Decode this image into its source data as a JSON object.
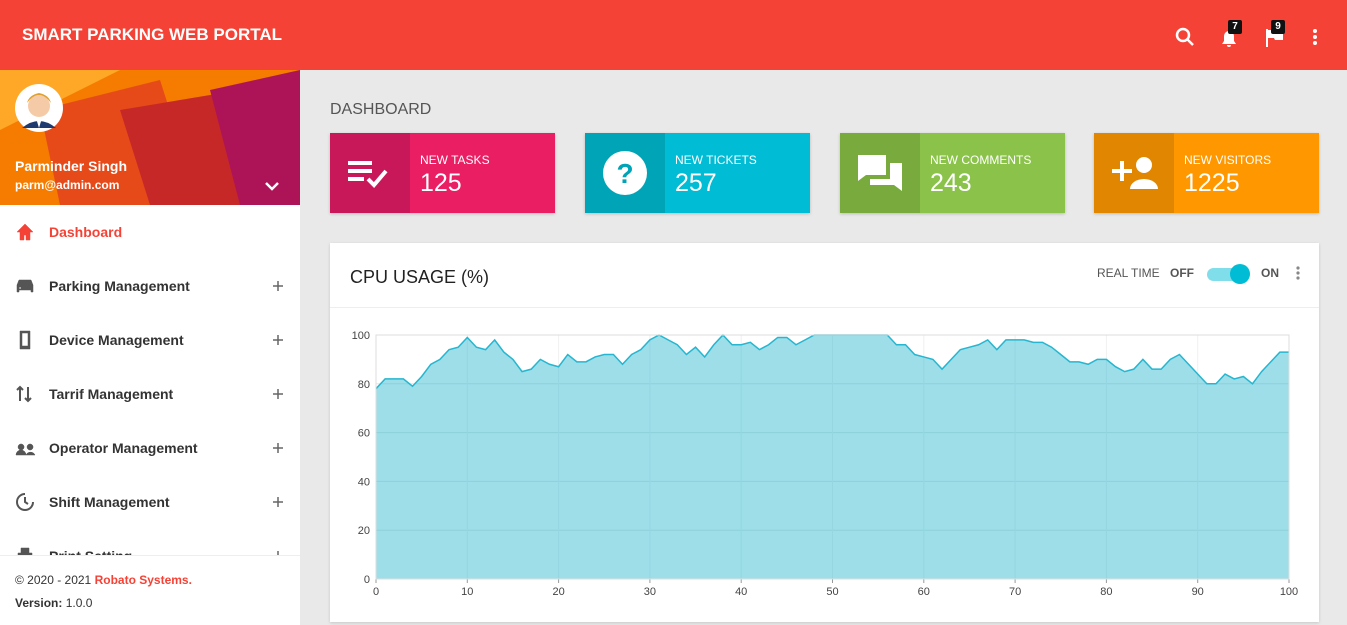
{
  "header": {
    "title": "SMART PARKING WEB PORTAL",
    "notifications": 7,
    "flags": 9
  },
  "user": {
    "name": "Parminder Singh",
    "email": "parm@admin.com"
  },
  "menu": [
    "Dashboard",
    "Parking Management",
    "Device Management",
    "Tarrif Management",
    "Operator Management",
    "Shift Management",
    "Print Setting"
  ],
  "footer": {
    "copyright": "© 2020 - 2021",
    "company": "Robato Systems.",
    "version_label": "Version:",
    "version": "1.0.0"
  },
  "page_title": "DASHBOARD",
  "cards": [
    {
      "label": "NEW TASKS",
      "value": 125
    },
    {
      "label": "NEW TICKETS",
      "value": 257
    },
    {
      "label": "NEW COMMENTS",
      "value": 243
    },
    {
      "label": "NEW VISITORS",
      "value": 1225
    }
  ],
  "panel": {
    "realtime_label": "REAL TIME",
    "off_label": "OFF",
    "on_label": "ON"
  },
  "chart_data": {
    "type": "area",
    "title": "CPU USAGE (%)",
    "x": [
      0,
      1,
      2,
      3,
      4,
      5,
      6,
      7,
      8,
      9,
      10,
      11,
      12,
      13,
      14,
      15,
      16,
      17,
      18,
      19,
      20,
      21,
      22,
      23,
      24,
      25,
      26,
      27,
      28,
      29,
      30,
      31,
      32,
      33,
      34,
      35,
      36,
      37,
      38,
      39,
      40,
      41,
      42,
      43,
      44,
      45,
      46,
      47,
      48,
      49,
      50,
      51,
      52,
      53,
      54,
      55,
      56,
      57,
      58,
      59,
      60,
      61,
      62,
      63,
      64,
      65,
      66,
      67,
      68,
      69,
      70,
      71,
      72,
      73,
      74,
      75,
      76,
      77,
      78,
      79,
      80,
      81,
      82,
      83,
      84,
      85,
      86,
      87,
      88,
      89,
      90,
      91,
      92,
      93,
      94,
      95,
      96,
      97,
      98,
      99,
      100
    ],
    "series": [
      {
        "name": "CPU",
        "color": "#26b6cf",
        "values": [
          78,
          82,
          82,
          82,
          79,
          83,
          88,
          90,
          94,
          95,
          99,
          95,
          94,
          98,
          93,
          90,
          85,
          86,
          90,
          88,
          87,
          92,
          89,
          89,
          91,
          92,
          92,
          88,
          92,
          94,
          98,
          100,
          98,
          96,
          92,
          95,
          91,
          96,
          100,
          96,
          96,
          97,
          94,
          96,
          99,
          99,
          96,
          98,
          100,
          100,
          100,
          100,
          100,
          100,
          100,
          100,
          100,
          96,
          96,
          92,
          91,
          90,
          86,
          90,
          94,
          95,
          96,
          98,
          94,
          98,
          98,
          98,
          97,
          97,
          95,
          92,
          89,
          89,
          88,
          90,
          90,
          87,
          85,
          86,
          90,
          86,
          86,
          90,
          92,
          88,
          84,
          80,
          80,
          84,
          82,
          83,
          80,
          85,
          89,
          93,
          93
        ]
      }
    ],
    "xlim": [
      0,
      100
    ],
    "xticks": [
      0,
      10,
      20,
      30,
      40,
      50,
      60,
      70,
      80,
      90,
      100
    ],
    "ylim": [
      0,
      100
    ],
    "yticks": [
      0,
      20,
      40,
      60,
      80,
      100
    ],
    "grid": true
  }
}
